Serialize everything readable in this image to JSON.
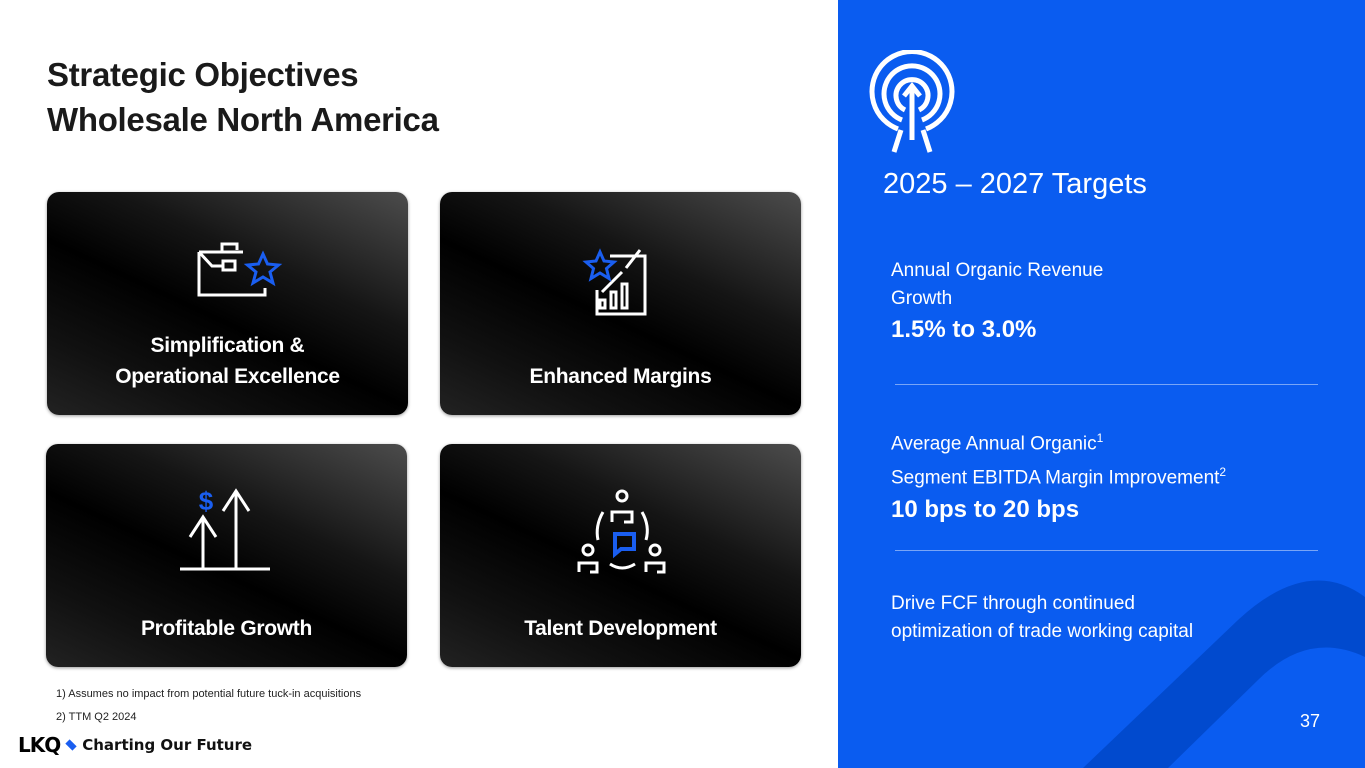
{
  "title": {
    "line1": "Strategic Objectives",
    "line2": "Wholesale North America"
  },
  "cards": [
    {
      "label_line1": "Simplification &",
      "label_line2": "Operational Excellence",
      "icon": "briefcase-star-icon"
    },
    {
      "label": "Enhanced Margins",
      "icon": "chart-star-icon"
    },
    {
      "label": "Profitable Growth",
      "icon": "dollar-growth-arrows-icon"
    },
    {
      "label": "Talent Development",
      "icon": "team-discussion-icon"
    }
  ],
  "footnotes": [
    "1) Assumes no impact from potential future tuck-in acquisitions",
    "2)  TTM Q2 2024"
  ],
  "logo": {
    "brand": "LKQ",
    "tagline": "Charting Our Future"
  },
  "targets": {
    "icon": "target-arrow-icon",
    "heading": "2025 – 2027 Targets",
    "items": [
      {
        "label_line1": "Annual Organic Revenue",
        "label_line2": "Growth",
        "value": "1.5% to 3.0%"
      },
      {
        "label_line1": "Average Annual Organic",
        "sup1": "1",
        "label_line2": "Segment EBITDA Margin Improvement",
        "sup2": "2",
        "value": "10 bps to 20 bps"
      },
      {
        "label_line1": "Drive FCF through continued",
        "label_line2": "optimization of trade working capital"
      }
    ]
  },
  "page_number": "37",
  "colors": {
    "accent": "#0a5cf0",
    "icon_blue": "#1a5ef0",
    "card_bg": "#000000"
  }
}
